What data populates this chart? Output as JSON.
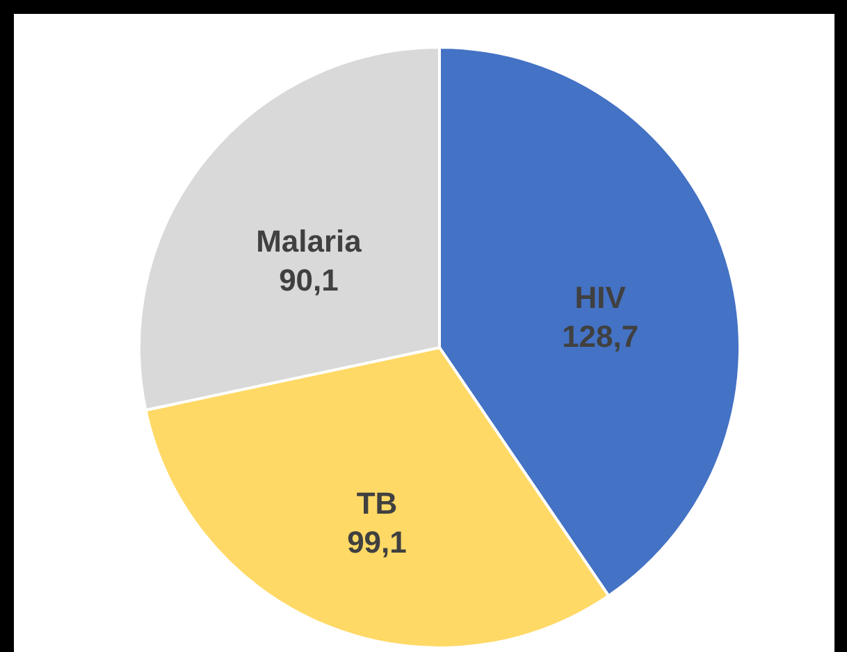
{
  "chart_data": {
    "type": "pie",
    "categories": [
      "HIV",
      "TB",
      "Malaria"
    ],
    "values": [
      128.7,
      99.1,
      90.1
    ],
    "value_labels": [
      "128,7",
      "99,1",
      "90,1"
    ],
    "colors": [
      "#4472c4",
      "#ffd966",
      "#d9d9d9"
    ]
  }
}
